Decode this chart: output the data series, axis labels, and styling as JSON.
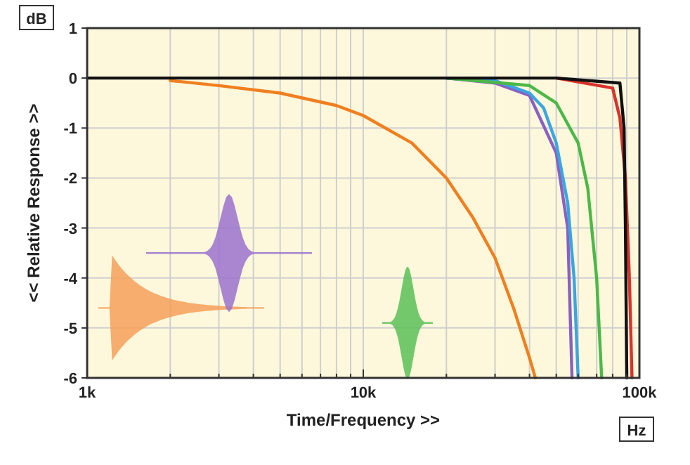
{
  "chart_data": {
    "type": "line",
    "xlabel": "Time/Frequency >>",
    "ylabel": "<< Relative Response >>",
    "annotations": [
      "dB",
      "Hz"
    ],
    "log": "x",
    "grid": true,
    "xlim": [
      1000,
      100000
    ],
    "ylim": [
      -6,
      1
    ],
    "xticks": [
      {
        "value": 1000,
        "label": "1k"
      },
      {
        "value": 2000,
        "label": null
      },
      {
        "value": 3000,
        "label": null
      },
      {
        "value": 4000,
        "label": null
      },
      {
        "value": 5000,
        "label": null
      },
      {
        "value": 6000,
        "label": null
      },
      {
        "value": 7000,
        "label": null
      },
      {
        "value": 8000,
        "label": null
      },
      {
        "value": 9000,
        "label": null
      },
      {
        "value": 10000,
        "label": "10k"
      },
      {
        "value": 20000,
        "label": null
      },
      {
        "value": 30000,
        "label": null
      },
      {
        "value": 40000,
        "label": null
      },
      {
        "value": 50000,
        "label": null
      },
      {
        "value": 60000,
        "label": null
      },
      {
        "value": 70000,
        "label": null
      },
      {
        "value": 80000,
        "label": null
      },
      {
        "value": 90000,
        "label": null
      },
      {
        "value": 100000,
        "label": "100k"
      }
    ],
    "yticks": [
      -6,
      -5,
      -4,
      -3,
      -2,
      -1,
      0,
      1
    ],
    "series": [
      {
        "color": "#f07f1f",
        "x": [
          2000,
          3000,
          5000,
          8000,
          10000,
          15000,
          20000,
          25000,
          30000,
          35000,
          40000,
          42000
        ],
        "values": [
          -0.05,
          -0.15,
          -0.3,
          -0.55,
          -0.75,
          -1.3,
          -2.0,
          -2.8,
          -3.6,
          -4.6,
          -5.6,
          -6
        ]
      },
      {
        "color": "#8a60c0",
        "x": [
          20000,
          30000,
          40000,
          50000,
          55000,
          57000
        ],
        "values": [
          0,
          -0.1,
          -0.35,
          -1.5,
          -3,
          -6
        ]
      },
      {
        "color": "#3aa6e0",
        "x": [
          20000,
          30000,
          40000,
          45000,
          50000,
          55000,
          58000,
          60000
        ],
        "values": [
          0,
          -0.05,
          -0.3,
          -0.6,
          -1.3,
          -2.5,
          -4,
          -6
        ]
      },
      {
        "color": "#4cb848",
        "x": [
          20000,
          40000,
          50000,
          60000,
          65000,
          70000,
          73000
        ],
        "values": [
          0,
          -0.15,
          -0.5,
          -1.3,
          -2.2,
          -4,
          -6
        ]
      },
      {
        "color": "#d8332a",
        "x": [
          50000,
          80000,
          85000,
          89000,
          92000,
          94000
        ],
        "values": [
          0,
          -0.2,
          -0.8,
          -2,
          -4,
          -6
        ]
      },
      {
        "color": "#111111",
        "x": [
          1000,
          10000,
          50000,
          85000,
          88000,
          89000,
          90000
        ],
        "values": [
          0,
          0,
          0,
          -0.1,
          -1,
          -3,
          -6
        ]
      }
    ]
  }
}
